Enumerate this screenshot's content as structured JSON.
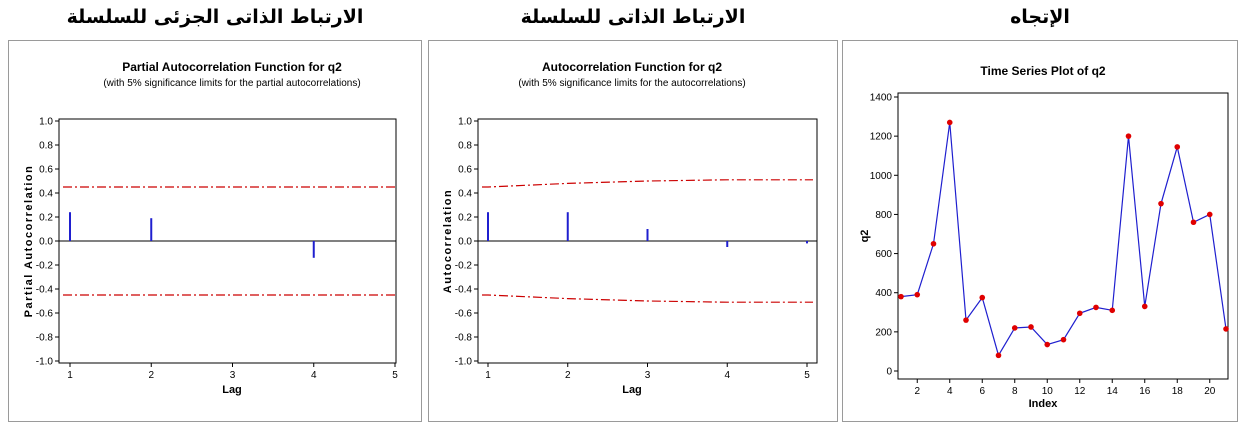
{
  "headings": {
    "left": "الارتباط الذاتى الجزئى للسلسلة",
    "middle": "الارتباط الذاتى للسلسلة",
    "right": "الإتجاه"
  },
  "chart_data": [
    {
      "type": "bar",
      "title": "Partial Autocorrelation Function for q2",
      "subtitle": "(with 5% significance limits for the partial autocorrelations)",
      "xlabel": "Lag",
      "ylabel": "Partial Autocorrelation",
      "x": [
        1,
        2,
        3,
        4,
        5
      ],
      "x_ticks": [
        "1",
        "2",
        "3",
        "4",
        "5"
      ],
      "values": [
        0.24,
        0.19,
        0.0,
        -0.14,
        0.0
      ],
      "ylim": [
        -1.0,
        1.0
      ],
      "y_ticks": [
        "1.0",
        "0.8",
        "0.6",
        "0.4",
        "0.2",
        "0.0",
        "-0.2",
        "-0.4",
        "-0.6",
        "-0.8",
        "-1.0"
      ],
      "significance_limits": {
        "upper": [
          0.45,
          0.45,
          0.45,
          0.45,
          0.45
        ],
        "lower": [
          -0.45,
          -0.45,
          -0.45,
          -0.45,
          -0.45
        ]
      },
      "bar_color": "#1f1fcf",
      "limit_color": "#cc0000"
    },
    {
      "type": "bar",
      "title": "Autocorrelation Function for q2",
      "subtitle": "(with 5% significance limits for the autocorrelations)",
      "xlabel": "Lag",
      "ylabel": "Autocorrelation",
      "x": [
        1,
        2,
        3,
        4,
        5
      ],
      "x_ticks": [
        "1",
        "2",
        "3",
        "4",
        "5"
      ],
      "values": [
        0.24,
        0.24,
        0.1,
        -0.05,
        -0.02
      ],
      "ylim": [
        -1.0,
        1.0
      ],
      "y_ticks": [
        "1.0",
        "0.8",
        "0.6",
        "0.4",
        "0.2",
        "0.0",
        "-0.2",
        "-0.4",
        "-0.6",
        "-0.8",
        "-1.0"
      ],
      "significance_limits": {
        "upper": [
          0.45,
          0.48,
          0.5,
          0.51,
          0.51
        ],
        "lower": [
          -0.45,
          -0.48,
          -0.5,
          -0.51,
          -0.51
        ]
      },
      "bar_color": "#1f1fcf",
      "limit_color": "#cc0000"
    },
    {
      "type": "line",
      "title": "Time Series Plot of q2",
      "xlabel": "Index",
      "ylabel": "q2",
      "x": [
        1,
        2,
        3,
        4,
        5,
        6,
        7,
        8,
        9,
        10,
        11,
        12,
        13,
        14,
        15,
        16,
        17,
        18,
        19,
        20,
        21
      ],
      "x_ticks": [
        "2",
        "4",
        "6",
        "8",
        "10",
        "12",
        "14",
        "16",
        "18",
        "20"
      ],
      "values": [
        380,
        390,
        650,
        1270,
        260,
        375,
        80,
        220,
        225,
        135,
        160,
        295,
        325,
        310,
        1200,
        330,
        855,
        1145,
        760,
        800,
        215
      ],
      "ylim": [
        0,
        1400
      ],
      "y_ticks": [
        "0",
        "200",
        "400",
        "600",
        "800",
        "1000",
        "1200",
        "1400"
      ],
      "line_color": "#1f1fcf",
      "marker_color": "#e00000"
    }
  ]
}
